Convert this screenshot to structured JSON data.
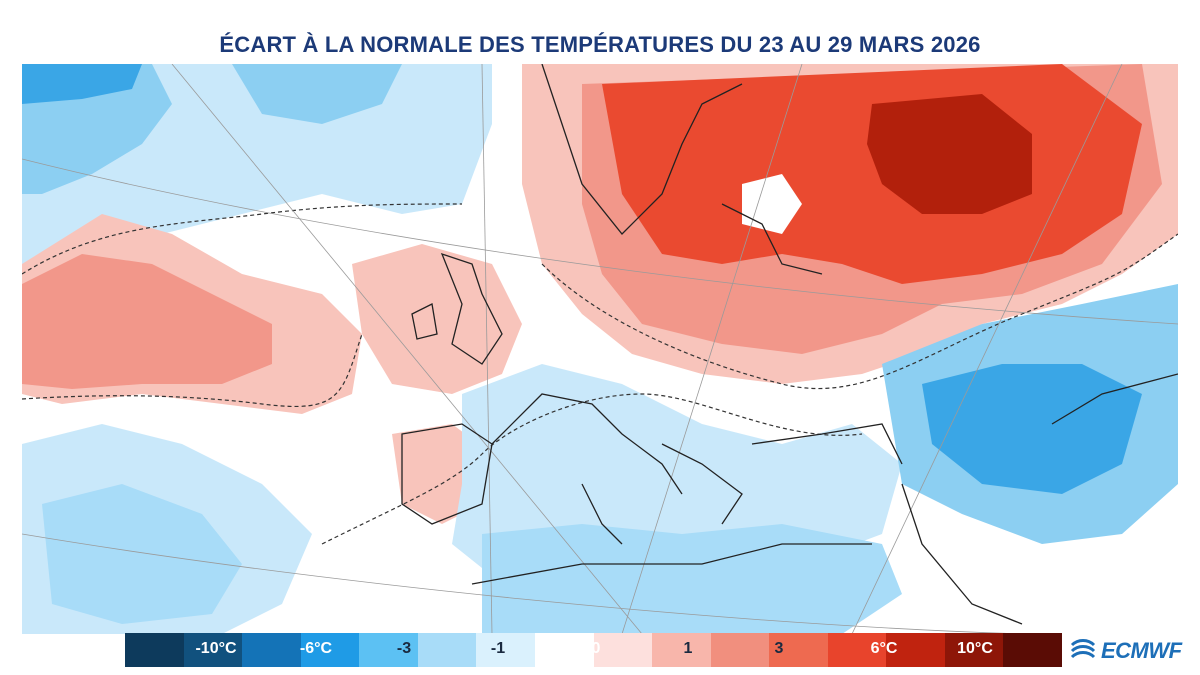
{
  "title": "ÉCART À LA NORMALE DES TEMPÉRATURES DU 23 AU 29 MARS 2026",
  "legend": {
    "segments": [
      {
        "color": "#0d3a5c"
      },
      {
        "color": "#11517e"
      },
      {
        "color": "#1473b7"
      },
      {
        "color": "#1f9be6"
      },
      {
        "color": "#5cc1f3"
      },
      {
        "color": "#a8dcf8"
      },
      {
        "color": "#daf1fd"
      },
      {
        "color": "#ffffff"
      },
      {
        "color": "#fde0dd"
      },
      {
        "color": "#f8b6ab"
      },
      {
        "color": "#f18f7e"
      },
      {
        "color": "#ee6a50"
      },
      {
        "color": "#e8442c"
      },
      {
        "color": "#c0230f"
      },
      {
        "color": "#8e1608"
      },
      {
        "color": "#5a0c05"
      }
    ],
    "labels": [
      {
        "text": "-10°C",
        "color": "#ffffff"
      },
      {
        "text": "-6°C",
        "color": "#ffffff"
      },
      {
        "text": "-3",
        "color": "#1a2a40"
      },
      {
        "text": "-1",
        "color": "#1a2a40"
      },
      {
        "text": "0",
        "color": "#ffffff"
      },
      {
        "text": "1",
        "color": "#1a2a40"
      },
      {
        "text": "3",
        "color": "#1a2a40"
      },
      {
        "text": "6°C",
        "color": "#ffffff"
      },
      {
        "text": "10°C",
        "color": "#ffffff"
      }
    ]
  },
  "logo": {
    "text": "ECMWF"
  },
  "colors": {
    "title": "#1c3a78",
    "warm_light": "#f8c4bb",
    "warm_mid": "#f2978a",
    "warm_strong": "#ea4a30",
    "warm_extreme": "#b2200c",
    "cold_light": "#c9e8fa",
    "cold_mid": "#8ccff2",
    "cold_strong": "#3aa6e6"
  }
}
